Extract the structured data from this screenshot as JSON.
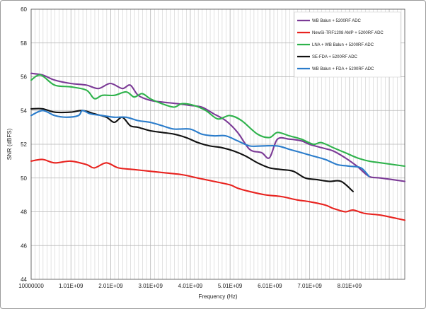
{
  "chart_data": {
    "type": "line",
    "title": "",
    "xlabel": "Frequency (Hz)",
    "ylabel": "SNR (dBFS)",
    "xlim": [
      10000000,
      9400000000
    ],
    "ylim": [
      44,
      60
    ],
    "x_ticks": [
      "10000000",
      "1.01E+09",
      "2.01E+09",
      "3.01E+09",
      "4.01E+09",
      "5.01E+09",
      "6.01E+09",
      "7.01E+09",
      "8.01E+09"
    ],
    "y_ticks": [
      "44",
      "46",
      "48",
      "50",
      "52",
      "54",
      "56",
      "58",
      "60"
    ],
    "grid": true,
    "legend_position": "top-right",
    "series": [
      {
        "name": "WB Balun + 5200RF ADC",
        "color": "#7b3a96",
        "x": [
          10000000,
          300000000,
          600000000,
          1000000000,
          1400000000,
          1700000000,
          2000000000,
          2300000000,
          2500000000,
          2700000000,
          3000000000,
          3300000000,
          3700000000,
          4000000000,
          4300000000,
          4600000000,
          4900000000,
          5200000000,
          5500000000,
          5800000000,
          6000000000,
          6200000000,
          6500000000,
          6800000000,
          7000000000,
          7300000000,
          7600000000,
          7900000000,
          8200000000,
          8500000000,
          8800000000,
          9400000000
        ],
        "values": [
          56.2,
          56.1,
          55.8,
          55.6,
          55.5,
          55.3,
          55.6,
          55.3,
          55.5,
          54.9,
          54.6,
          54.5,
          54.4,
          54.3,
          54.2,
          53.8,
          53.4,
          52.7,
          51.7,
          51.5,
          51.2,
          52.3,
          52.3,
          52.2,
          52.0,
          51.8,
          51.6,
          51.2,
          50.7,
          50.1,
          50.0,
          49.8
        ]
      },
      {
        "name": "NewSi-TRF1208 AMP + 5200RF ADC",
        "color": "#e8231f",
        "x": [
          10000000,
          300000000,
          600000000,
          1000000000,
          1400000000,
          1600000000,
          1900000000,
          2200000000,
          2600000000,
          3000000000,
          3400000000,
          3800000000,
          4200000000,
          4600000000,
          5000000000,
          5200000000,
          5500000000,
          5900000000,
          6300000000,
          6700000000,
          7000000000,
          7400000000,
          7600000000,
          7900000000,
          8100000000,
          8400000000,
          8800000000,
          9200000000,
          9400000000
        ],
        "values": [
          51.0,
          51.1,
          50.9,
          51.0,
          50.8,
          50.6,
          50.9,
          50.6,
          50.5,
          50.4,
          50.3,
          50.2,
          50.0,
          49.8,
          49.6,
          49.4,
          49.2,
          49.0,
          48.9,
          48.7,
          48.6,
          48.4,
          48.2,
          48.0,
          48.1,
          47.9,
          47.8,
          47.6,
          47.5
        ]
      },
      {
        "name": "LNA + WB Balun + 5200RF ADC",
        "color": "#2eb24b",
        "x": [
          10000000,
          250000000,
          600000000,
          1000000000,
          1400000000,
          1600000000,
          1800000000,
          2100000000,
          2400000000,
          2600000000,
          2800000000,
          3000000000,
          3300000000,
          3600000000,
          3800000000,
          4100000000,
          4400000000,
          4700000000,
          5000000000,
          5300000000,
          5700000000,
          6000000000,
          6200000000,
          6500000000,
          6800000000,
          7100000000,
          7300000000,
          7600000000,
          7900000000,
          8200000000,
          8500000000,
          8800000000,
          9400000000
        ],
        "values": [
          55.8,
          56.1,
          55.5,
          55.4,
          55.2,
          54.7,
          54.9,
          54.9,
          55.1,
          54.8,
          55.0,
          54.7,
          54.4,
          54.2,
          54.4,
          54.3,
          54.0,
          53.5,
          53.7,
          53.4,
          52.6,
          52.4,
          52.7,
          52.5,
          52.3,
          52.0,
          52.1,
          51.8,
          51.5,
          51.2,
          51.0,
          50.9,
          50.7
        ]
      },
      {
        "name": "SE-FDA + 5200RF ADC",
        "color": "#111111",
        "x": [
          10000000,
          300000000,
          600000000,
          1000000000,
          1300000000,
          1600000000,
          1900000000,
          2100000000,
          2300000000,
          2500000000,
          2700000000,
          3000000000,
          3300000000,
          3600000000,
          3900000000,
          4200000000,
          4500000000,
          4800000000,
          5100000000,
          5400000000,
          5700000000,
          6000000000,
          6300000000,
          6600000000,
          6900000000,
          7200000000,
          7500000000,
          7800000000,
          8100000000
        ],
        "values": [
          54.1,
          54.1,
          53.9,
          53.9,
          54.0,
          53.8,
          53.6,
          53.3,
          53.6,
          53.1,
          53.0,
          52.8,
          52.7,
          52.6,
          52.4,
          52.1,
          51.9,
          51.8,
          51.6,
          51.3,
          50.9,
          50.6,
          50.5,
          50.4,
          50.0,
          49.9,
          49.8,
          49.8,
          49.2
        ]
      },
      {
        "name": "WB Balun + FDA + 5200RF ADC",
        "color": "#2a7ccb",
        "x": [
          10000000,
          300000000,
          600000000,
          900000000,
          1200000000,
          1300000000,
          1500000000,
          1800000000,
          2100000000,
          2400000000,
          2700000000,
          3000000000,
          3300000000,
          3600000000,
          4000000000,
          4300000000,
          4600000000,
          4900000000,
          5200000000,
          5500000000,
          5800000000,
          6200000000,
          6500000000,
          6800000000,
          7100000000,
          7400000000,
          7700000000,
          8000000000,
          8300000000,
          8500000000
        ],
        "values": [
          53.7,
          54.0,
          53.7,
          53.6,
          53.7,
          54.0,
          53.8,
          53.7,
          53.6,
          53.6,
          53.4,
          53.3,
          53.1,
          52.9,
          52.9,
          52.6,
          52.5,
          52.5,
          52.2,
          51.9,
          51.9,
          51.9,
          51.7,
          51.5,
          51.3,
          51.1,
          50.8,
          50.7,
          50.6,
          50.1
        ]
      }
    ]
  }
}
